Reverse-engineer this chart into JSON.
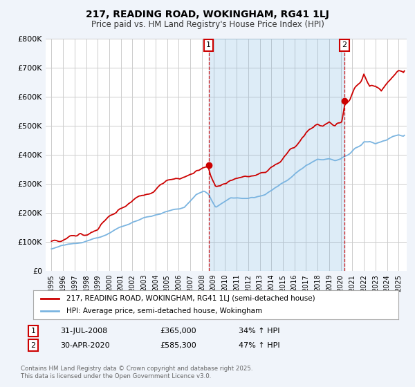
{
  "title": "217, READING ROAD, WOKINGHAM, RG41 1LJ",
  "subtitle": "Price paid vs. HM Land Registry's House Price Index (HPI)",
  "legend_line1": "217, READING ROAD, WOKINGHAM, RG41 1LJ (semi-detached house)",
  "legend_line2": "HPI: Average price, semi-detached house, Wokingham",
  "footnote": "Contains HM Land Registry data © Crown copyright and database right 2025.\nThis data is licensed under the Open Government Licence v3.0.",
  "marker1_date_label": "31-JUL-2008",
  "marker1_price": "£365,000",
  "marker1_hpi": "34% ↑ HPI",
  "marker1_x": 2008.58,
  "marker1_y": 365000,
  "marker2_date_label": "30-APR-2020",
  "marker2_price": "£585,300",
  "marker2_hpi": "47% ↑ HPI",
  "marker2_x": 2020.33,
  "marker2_y": 585300,
  "red_line_color": "#cc0000",
  "blue_line_color": "#7ab4e0",
  "shade_color": "#ddeeff",
  "background_color": "#f0f4fa",
  "plot_bg_color": "#ffffff",
  "grid_color": "#cccccc",
  "marker_box_color": "#cc0000",
  "dashed_line_color": "#cc0000",
  "ylim": [
    0,
    800000
  ],
  "yticks": [
    0,
    100000,
    200000,
    300000,
    400000,
    500000,
    600000,
    700000,
    800000
  ],
  "ytick_labels": [
    "£0",
    "£100K",
    "£200K",
    "£300K",
    "£400K",
    "£500K",
    "£600K",
    "£700K",
    "£800K"
  ],
  "xlim_start": 1994.5,
  "xlim_end": 2025.7,
  "xticks": [
    1995,
    1996,
    1997,
    1998,
    1999,
    2000,
    2001,
    2002,
    2003,
    2004,
    2005,
    2006,
    2007,
    2008,
    2009,
    2010,
    2011,
    2012,
    2013,
    2014,
    2015,
    2016,
    2017,
    2018,
    2019,
    2020,
    2021,
    2022,
    2023,
    2024,
    2025
  ]
}
